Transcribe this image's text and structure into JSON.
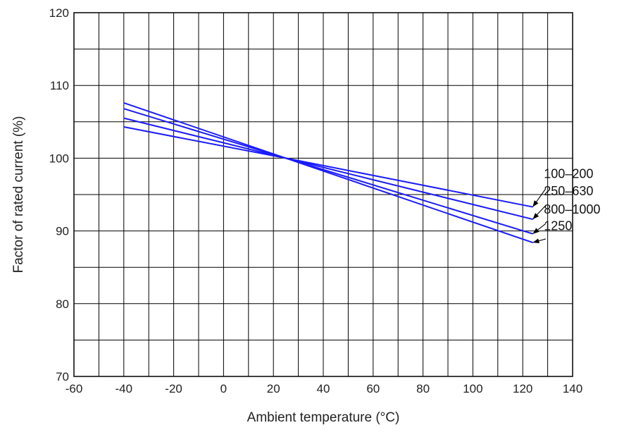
{
  "chart_data": {
    "type": "line",
    "title": "",
    "xlabel": "Ambient temperature (°C)",
    "ylabel": "Factor of rated current (%)",
    "xlim": [
      -60,
      140
    ],
    "ylim": [
      70,
      120
    ],
    "grid": true,
    "x_ticks": [
      "-60",
      "-40",
      "-20",
      "0",
      "20",
      "40",
      "60",
      "80",
      "100",
      "120",
      "140"
    ],
    "y_ticks": [
      "70",
      "80",
      "90",
      "100",
      "110",
      "120"
    ],
    "line_color": "#1a1aff",
    "series": [
      {
        "name": "100–200",
        "x": [
          -40,
          25,
          124
        ],
        "y": [
          104.3,
          100,
          93.3
        ]
      },
      {
        "name": "250–630",
        "x": [
          -40,
          25,
          124
        ],
        "y": [
          105.5,
          100,
          91.6
        ]
      },
      {
        "name": "800–1000",
        "x": [
          -40,
          25,
          124
        ],
        "y": [
          106.8,
          100,
          89.6
        ]
      },
      {
        "name": "1250",
        "x": [
          -40,
          25,
          124
        ],
        "y": [
          107.6,
          100,
          88.4
        ]
      }
    ]
  }
}
